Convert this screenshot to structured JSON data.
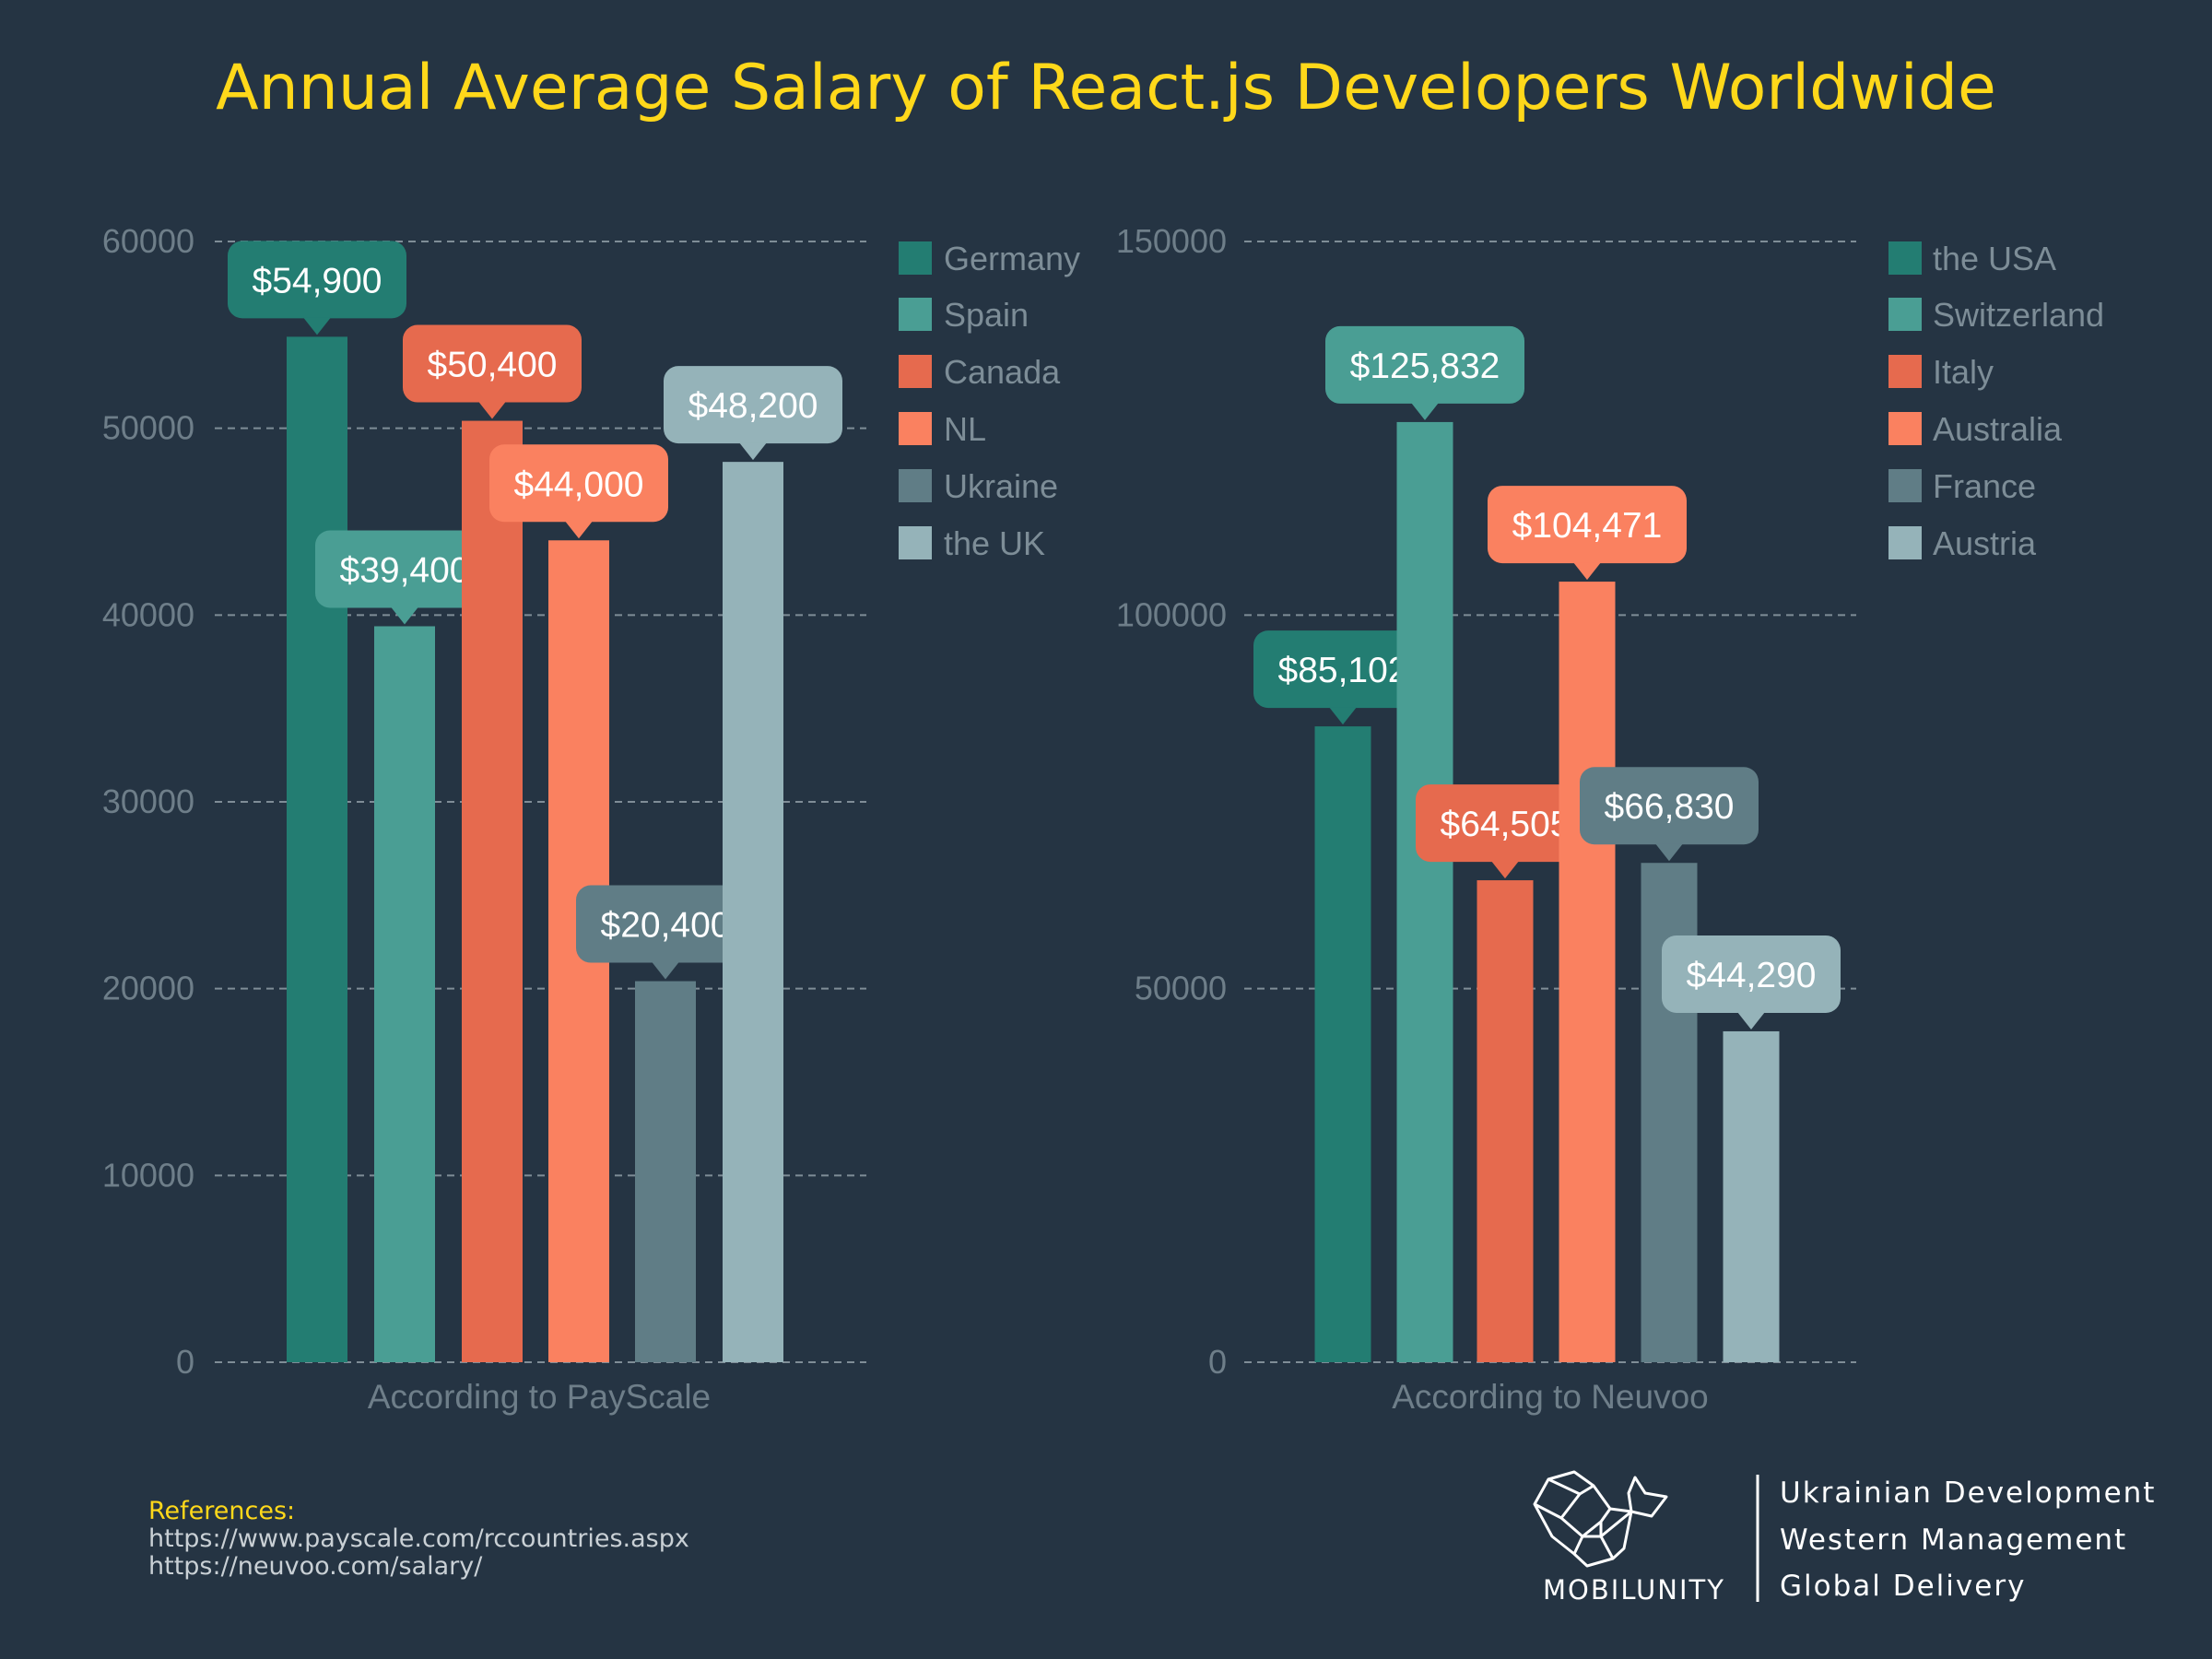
{
  "title": "Annual Average Salary of React.js Developers Worldwide",
  "chart_data": [
    {
      "type": "bar",
      "title": "",
      "xlabel": "According to PayScale",
      "ylabel": "",
      "ylim": [
        0,
        60000
      ],
      "yticks": [
        "0",
        "10000",
        "20000",
        "30000",
        "40000",
        "50000",
        "60000"
      ],
      "grid": true,
      "legend_position": "right",
      "categories": [
        "Germany",
        "Spain",
        "Canada",
        "NL",
        "Ukraine",
        "the UK"
      ],
      "values": [
        54900,
        39400,
        50400,
        44000,
        20400,
        48200
      ],
      "data_labels": [
        "$54,900",
        "$39,400",
        "$50,400",
        "$44,000",
        "$20,400",
        "$48,200"
      ],
      "colors": [
        "#237D72",
        "#4A9E94",
        "#E66A4E",
        "#FA8160",
        "#607D86",
        "#95B3B9"
      ]
    },
    {
      "type": "bar",
      "title": "",
      "xlabel": "According to Neuvoo",
      "ylabel": "",
      "ylim": [
        0,
        150000
      ],
      "yticks": [
        "0",
        "50000",
        "100000",
        "150000"
      ],
      "grid": true,
      "legend_position": "right",
      "categories": [
        "the USA",
        "Switzerland",
        "Italy",
        "Australia",
        "France",
        "Austria"
      ],
      "values": [
        85102,
        125832,
        64505,
        104471,
        66830,
        44290
      ],
      "data_labels": [
        "$85,102",
        "$125,832",
        "$64,505",
        "$104,471",
        "$66,830",
        "$44,290"
      ],
      "colors": [
        "#237D72",
        "#4A9E94",
        "#E66A4E",
        "#FA8160",
        "#607D86",
        "#95B3B9"
      ]
    }
  ],
  "references": {
    "heading": "References:",
    "links": [
      "https://www.payscale.com/rccountries.aspx",
      "https://neuvoo.com/salary/"
    ]
  },
  "branding": {
    "logo_text": "MOBILUNITY",
    "taglines": [
      "Ukrainian Development",
      "Western Management",
      "Global Delivery"
    ]
  },
  "colors": {
    "background": "#253443",
    "title": "#FFD81A"
  }
}
